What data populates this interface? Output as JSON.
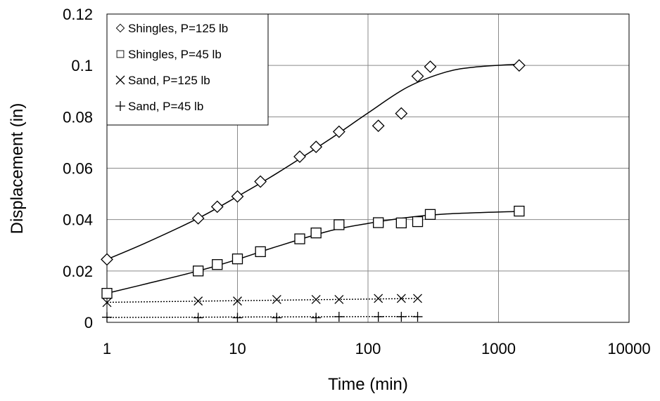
{
  "chart_data": {
    "type": "scatter",
    "xlabel": "Time (min)",
    "ylabel": "Displacement (in)",
    "x_scale": "log",
    "xlim": [
      1,
      10000
    ],
    "ylim": [
      0,
      0.12
    ],
    "x_ticks": [
      1,
      10,
      100,
      1000,
      10000
    ],
    "x_tick_labels": [
      "1",
      "10",
      "100",
      "1000",
      "10000"
    ],
    "y_ticks": [
      0,
      0.02,
      0.04,
      0.06,
      0.08,
      0.1,
      0.12
    ],
    "y_tick_labels": [
      "0",
      "0.02",
      "0.04",
      "0.06",
      "0.08",
      "0.1",
      "0.12"
    ],
    "grid": true,
    "legend_position": "top-left",
    "series": [
      {
        "name": "Shingles, P=125 lb",
        "marker": "diamond",
        "x": [
          1,
          5,
          7,
          10,
          15,
          30,
          40,
          60,
          120,
          180,
          240,
          300,
          1440
        ],
        "y": [
          0.0245,
          0.0405,
          0.045,
          0.049,
          0.0548,
          0.0645,
          0.0683,
          0.0742,
          0.0765,
          0.0813,
          0.0958,
          0.0995,
          0.1
        ],
        "trend": {
          "style": "solid",
          "x": [
            1,
            2,
            5,
            10,
            20,
            50,
            100,
            200,
            400,
            700,
            1440
          ],
          "y": [
            0.0245,
            0.031,
            0.0405,
            0.049,
            0.058,
            0.071,
            0.0815,
            0.0915,
            0.0975,
            0.0995,
            0.1005
          ]
        }
      },
      {
        "name": "Shingles, P=45 lb",
        "marker": "square",
        "x": [
          1,
          5,
          7,
          10,
          15,
          30,
          40,
          60,
          120,
          180,
          240,
          300,
          1440
        ],
        "y": [
          0.0113,
          0.02,
          0.0225,
          0.0247,
          0.0275,
          0.0325,
          0.0348,
          0.038,
          0.0388,
          0.0387,
          0.0392,
          0.042,
          0.0433
        ],
        "trend": {
          "style": "solid",
          "x": [
            1,
            2,
            5,
            10,
            20,
            50,
            100,
            200,
            400,
            1440
          ],
          "y": [
            0.0113,
            0.015,
            0.02,
            0.0245,
            0.0295,
            0.0355,
            0.0385,
            0.0408,
            0.0422,
            0.0432
          ]
        }
      },
      {
        "name": "Sand, P=125 lb",
        "marker": "x",
        "x": [
          1,
          5,
          10,
          20,
          40,
          60,
          120,
          180,
          240
        ],
        "y": [
          0.0077,
          0.0083,
          0.0083,
          0.0089,
          0.0089,
          0.0089,
          0.0093,
          0.0093,
          0.0093
        ],
        "trend": {
          "style": "dotted",
          "x": [
            1,
            240
          ],
          "y": [
            0.0078,
            0.0093
          ]
        }
      },
      {
        "name": "Sand, P=45 lb",
        "marker": "plus",
        "x": [
          1,
          5,
          10,
          20,
          40,
          60,
          120,
          180,
          240
        ],
        "y": [
          0.002,
          0.0018,
          0.0018,
          0.0018,
          0.0018,
          0.0022,
          0.0022,
          0.0022,
          0.0022
        ],
        "trend": {
          "style": "dotted",
          "x": [
            1,
            240
          ],
          "y": [
            0.0019,
            0.0023
          ]
        }
      }
    ]
  }
}
